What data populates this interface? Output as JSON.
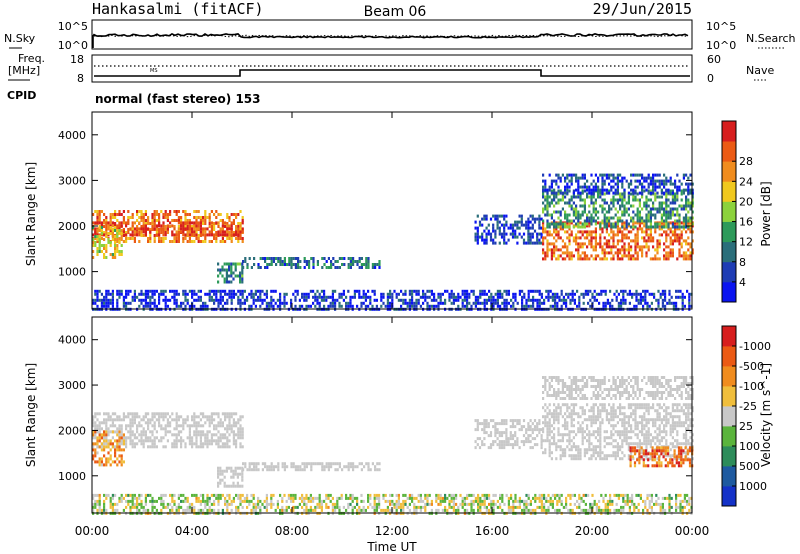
{
  "header": {
    "station": "Hankasalmi (fitACF)",
    "beam": "Beam 06",
    "date": "29/Jun/2015"
  },
  "sky_panel": {
    "left_label": "N.Sky",
    "right_label": "N.Search",
    "left_ticks": [
      "10^5",
      "10^0"
    ],
    "right_ticks": [
      "10^5",
      "10^0"
    ]
  },
  "freq_panel": {
    "left_label_line1": "Freq.",
    "left_label_line2": "[MHz]",
    "right_label": "Nave",
    "left_ticks": [
      "18",
      "8"
    ],
    "right_ticks": [
      "60",
      "0"
    ],
    "inset_text": "MS"
  },
  "cpid": {
    "label": "CPID",
    "text": "normal (fast stereo) 153"
  },
  "chart_data": [
    {
      "type": "heatmap",
      "title": "",
      "xlabel": "",
      "ylabel": "Slant Range [km]",
      "x_ticks": [
        "00:00",
        "04:00",
        "08:00",
        "12:00",
        "16:00",
        "20:00",
        "00:00"
      ],
      "x_range_hours": [
        0,
        24
      ],
      "y_ticks": [
        1000,
        2000,
        3000,
        4000
      ],
      "y_range_km": [
        180,
        4500
      ],
      "colorbar": {
        "label": "Power [dB]",
        "tick_labels": [
          "4",
          "8",
          "12",
          "16",
          "20",
          "24",
          "28"
        ],
        "colors": [
          "#0a14f0",
          "#1e3cb4",
          "#2a6e7a",
          "#2d9a5a",
          "#8cd23c",
          "#f0c81e",
          "#f08c1e",
          "#eb5a14",
          "#d71e1e"
        ]
      },
      "regions": [
        {
          "t0": 0.0,
          "t1": 6.0,
          "r0": 1650,
          "r1": 2350,
          "level": 0.75
        },
        {
          "t0": 0.0,
          "t1": 6.0,
          "r0": 1800,
          "r1": 2100,
          "level": 0.9
        },
        {
          "t0": 0.0,
          "t1": 1.2,
          "r0": 1300,
          "r1": 2000,
          "level": 0.6
        },
        {
          "t0": 5.0,
          "t1": 6.0,
          "r0": 800,
          "r1": 1200,
          "level": 0.3
        },
        {
          "t0": 6.0,
          "t1": 11.5,
          "r0": 1120,
          "r1": 1320,
          "level": 0.25
        },
        {
          "t0": 15.3,
          "t1": 18.0,
          "r0": 1650,
          "r1": 2250,
          "level": 0.15
        },
        {
          "t0": 18.0,
          "t1": 24.0,
          "r0": 1300,
          "r1": 2100,
          "level": 0.8
        },
        {
          "t0": 18.0,
          "t1": 24.0,
          "r0": 1950,
          "r1": 2800,
          "level": 0.35
        },
        {
          "t0": 18.0,
          "t1": 24.0,
          "r0": 2700,
          "r1": 3150,
          "level": 0.15
        },
        {
          "t0": 0.0,
          "t1": 24.0,
          "r0": 180,
          "r1": 600,
          "level": 0.12
        }
      ]
    },
    {
      "type": "heatmap",
      "title": "",
      "xlabel": "Time UT",
      "ylabel": "Slant Range [km]",
      "x_ticks": [
        "00:00",
        "04:00",
        "08:00",
        "12:00",
        "16:00",
        "20:00",
        "00:00"
      ],
      "x_range_hours": [
        0,
        24
      ],
      "y_ticks": [
        1000,
        2000,
        3000,
        4000
      ],
      "y_range_km": [
        180,
        4500
      ],
      "colorbar": {
        "label": "Velocity [m s^-1]",
        "tick_labels": [
          "1000",
          "500",
          "100",
          "25",
          "-25",
          "-100",
          "-500",
          "-1000"
        ],
        "colors": [
          "#1432c8",
          "#1e5aa0",
          "#2d8c5a",
          "#5ab43c",
          "#c8c8c8",
          "#f0be3c",
          "#f08c1e",
          "#eb5a14",
          "#d71e1e"
        ]
      },
      "regions": [
        {
          "t0": 0.0,
          "t1": 6.0,
          "r0": 1650,
          "r1": 2400,
          "level": 0.0
        },
        {
          "t0": 0.0,
          "t1": 1.3,
          "r0": 1250,
          "r1": 2000,
          "level": 0.7
        },
        {
          "t0": 5.0,
          "t1": 6.0,
          "r0": 800,
          "r1": 1200,
          "level": 0.0
        },
        {
          "t0": 6.0,
          "t1": 11.5,
          "r0": 1120,
          "r1": 1300,
          "level": 0.0
        },
        {
          "t0": 15.3,
          "t1": 18.0,
          "r0": 1650,
          "r1": 2250,
          "level": 0.0
        },
        {
          "t0": 18.0,
          "t1": 24.0,
          "r0": 1400,
          "r1": 2600,
          "level": 0.0
        },
        {
          "t0": 21.5,
          "t1": 24.0,
          "r0": 1250,
          "r1": 1650,
          "level": 0.8
        },
        {
          "t0": 18.0,
          "t1": 24.0,
          "r0": 2700,
          "r1": 3200,
          "level": 0.0
        },
        {
          "t0": 0.0,
          "t1": 24.0,
          "r0": 180,
          "r1": 600,
          "level": 0.5
        }
      ]
    }
  ]
}
